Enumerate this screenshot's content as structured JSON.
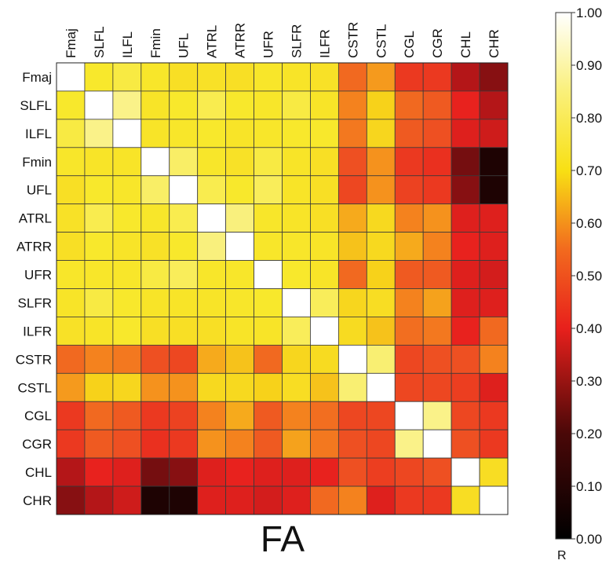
{
  "chart_data": {
    "type": "heatmap",
    "title": "FA",
    "x_categories": [
      "Fmaj",
      "SLFL",
      "ILFL",
      "Fmin",
      "UFL",
      "ATRL",
      "ATRR",
      "UFR",
      "SLFR",
      "ILFR",
      "CSTR",
      "CSTL",
      "CGL",
      "CGR",
      "CHL",
      "CHR"
    ],
    "y_categories": [
      "Fmaj",
      "SLFL",
      "ILFL",
      "Fmin",
      "UFL",
      "ATRL",
      "ATRR",
      "UFR",
      "SLFR",
      "ILFR",
      "CSTR",
      "CSTL",
      "CGL",
      "CGR",
      "CHL",
      "CHR"
    ],
    "values": [
      [
        1.0,
        0.8,
        0.82,
        0.79,
        0.76,
        0.77,
        0.76,
        0.79,
        0.78,
        0.77,
        0.55,
        0.63,
        0.45,
        0.45,
        0.3,
        0.25
      ],
      [
        0.8,
        1.0,
        0.88,
        0.78,
        0.8,
        0.83,
        0.8,
        0.79,
        0.82,
        0.78,
        0.6,
        0.7,
        0.55,
        0.52,
        0.4,
        0.3
      ],
      [
        0.82,
        0.88,
        1.0,
        0.78,
        0.79,
        0.8,
        0.78,
        0.79,
        0.8,
        0.8,
        0.58,
        0.72,
        0.52,
        0.5,
        0.38,
        0.35
      ],
      [
        0.79,
        0.78,
        0.78,
        1.0,
        0.85,
        0.79,
        0.77,
        0.82,
        0.78,
        0.76,
        0.5,
        0.62,
        0.45,
        0.43,
        0.23,
        0.1
      ],
      [
        0.76,
        0.8,
        0.79,
        0.85,
        1.0,
        0.83,
        0.8,
        0.84,
        0.78,
        0.76,
        0.48,
        0.62,
        0.47,
        0.45,
        0.25,
        0.1
      ],
      [
        0.77,
        0.83,
        0.8,
        0.79,
        0.83,
        1.0,
        0.87,
        0.79,
        0.78,
        0.76,
        0.65,
        0.73,
        0.6,
        0.62,
        0.38,
        0.38
      ],
      [
        0.76,
        0.8,
        0.78,
        0.77,
        0.8,
        0.87,
        1.0,
        0.79,
        0.79,
        0.78,
        0.68,
        0.73,
        0.65,
        0.6,
        0.4,
        0.38
      ],
      [
        0.79,
        0.79,
        0.79,
        0.82,
        0.84,
        0.79,
        0.79,
        1.0,
        0.8,
        0.78,
        0.55,
        0.7,
        0.52,
        0.52,
        0.38,
        0.36
      ],
      [
        0.78,
        0.82,
        0.8,
        0.78,
        0.78,
        0.78,
        0.79,
        0.8,
        1.0,
        0.84,
        0.72,
        0.75,
        0.6,
        0.64,
        0.38,
        0.38
      ],
      [
        0.77,
        0.78,
        0.8,
        0.76,
        0.76,
        0.76,
        0.78,
        0.78,
        0.84,
        1.0,
        0.74,
        0.68,
        0.56,
        0.58,
        0.4,
        0.55
      ],
      [
        0.55,
        0.6,
        0.58,
        0.5,
        0.48,
        0.65,
        0.68,
        0.55,
        0.72,
        0.74,
        1.0,
        0.86,
        0.48,
        0.5,
        0.5,
        0.6
      ],
      [
        0.63,
        0.7,
        0.72,
        0.62,
        0.62,
        0.73,
        0.73,
        0.7,
        0.75,
        0.68,
        0.86,
        1.0,
        0.48,
        0.48,
        0.46,
        0.38
      ],
      [
        0.45,
        0.55,
        0.52,
        0.45,
        0.47,
        0.6,
        0.65,
        0.52,
        0.6,
        0.56,
        0.48,
        0.48,
        1.0,
        0.88,
        0.48,
        0.45
      ],
      [
        0.45,
        0.52,
        0.5,
        0.43,
        0.45,
        0.62,
        0.6,
        0.52,
        0.64,
        0.58,
        0.5,
        0.48,
        0.88,
        1.0,
        0.5,
        0.45
      ],
      [
        0.3,
        0.4,
        0.38,
        0.23,
        0.25,
        0.38,
        0.4,
        0.38,
        0.38,
        0.4,
        0.5,
        0.46,
        0.48,
        0.5,
        1.0,
        0.75
      ],
      [
        0.25,
        0.3,
        0.35,
        0.1,
        0.1,
        0.38,
        0.38,
        0.36,
        0.38,
        0.55,
        0.6,
        0.38,
        0.45,
        0.45,
        0.75,
        1.0
      ]
    ],
    "colorbar": {
      "label": "R",
      "range": [
        0.0,
        1.0
      ],
      "tick_labels": [
        "1.00",
        "0.90",
        "0.80",
        "0.70",
        "0.60",
        "0.50",
        "0.40",
        "0.30",
        "0.20",
        "0.10",
        "0.00"
      ],
      "tick_values": [
        1.0,
        0.9,
        0.8,
        0.7,
        0.6,
        0.5,
        0.4,
        0.3,
        0.2,
        0.1,
        0.0
      ],
      "colormap": "hot"
    }
  }
}
